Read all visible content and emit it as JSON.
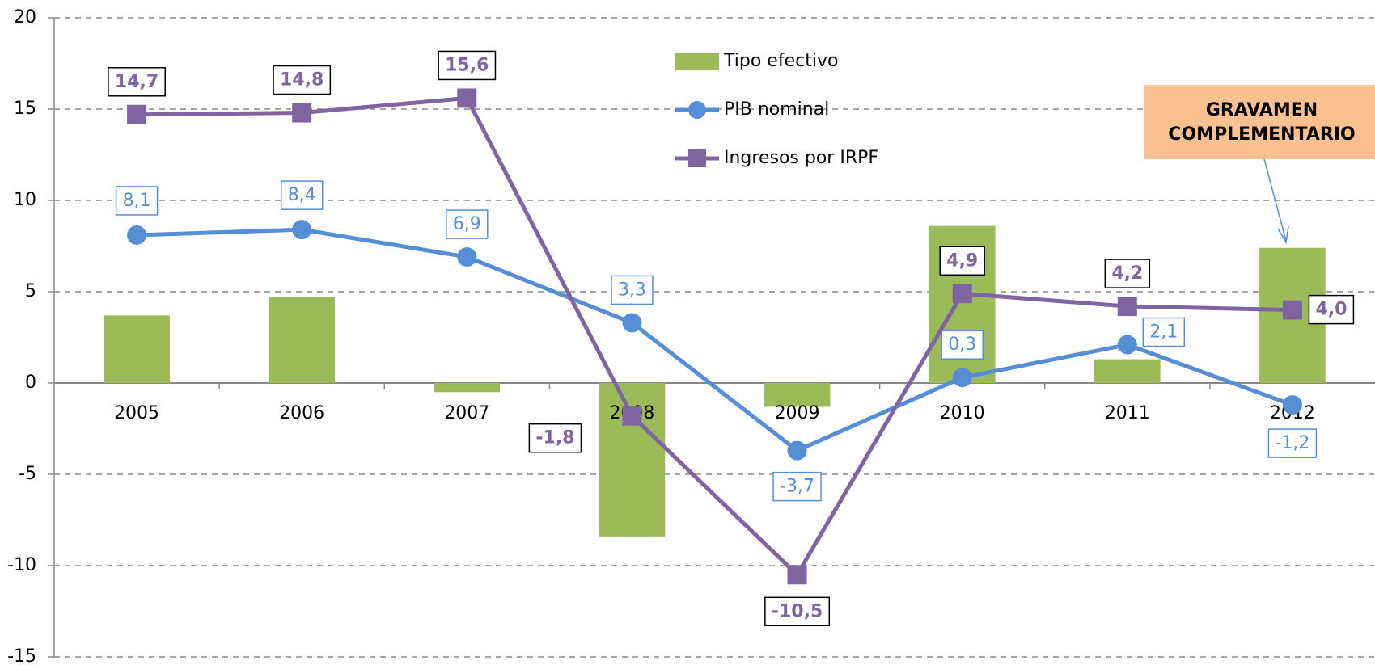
{
  "chart_data": {
    "type": "combo",
    "categories": [
      "2005",
      "2006",
      "2007",
      "2008",
      "2009",
      "2010",
      "2011",
      "2012"
    ],
    "series": [
      {
        "name": "Tipo efectivo",
        "type": "bar",
        "color": "#9bbb59",
        "values": [
          3.7,
          4.7,
          -0.5,
          -8.4,
          -1.3,
          8.6,
          1.3,
          7.4
        ]
      },
      {
        "name": "PIB nominal",
        "type": "line",
        "color": "#558ed5",
        "values": [
          8.1,
          8.4,
          6.9,
          3.3,
          -3.7,
          0.3,
          2.1,
          -1.2
        ],
        "value_labels": [
          "8,1",
          "8,4",
          "6,9",
          "3,3",
          "-3,7",
          "0,3",
          "2,1",
          "-1,2"
        ]
      },
      {
        "name": "Ingresos por IRPF",
        "type": "line",
        "color": "#8064a2",
        "values": [
          14.7,
          14.8,
          15.6,
          -1.8,
          -10.5,
          4.9,
          4.2,
          4.0
        ],
        "value_labels": [
          "14,7",
          "14,8",
          "15,6",
          "-1,8",
          "-10,5",
          "4,9",
          "4,2",
          "4,0"
        ]
      }
    ],
    "ylim": [
      -15,
      20
    ],
    "yticks": [
      -15,
      -10,
      -5,
      0,
      5,
      10,
      15,
      20
    ],
    "grid": true,
    "annotation": {
      "lines": [
        "GRAVAMEN",
        "COMPLEMENTARIO"
      ]
    }
  }
}
